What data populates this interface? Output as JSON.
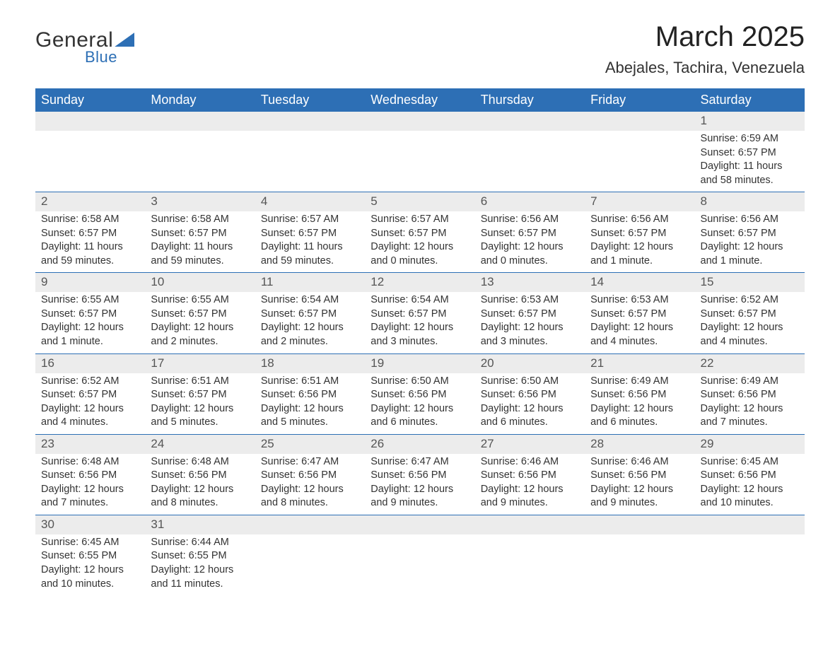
{
  "logo": {
    "word1": "General",
    "word2": "Blue"
  },
  "title": "March 2025",
  "location": "Abejales, Tachira, Venezuela",
  "colors": {
    "header_bg": "#2d6fb5",
    "header_text": "#ffffff",
    "daynum_bg": "#ececec",
    "row_border": "#2d6fb5",
    "body_text": "#333333",
    "page_bg": "#ffffff"
  },
  "weekday_labels": [
    "Sunday",
    "Monday",
    "Tuesday",
    "Wednesday",
    "Thursday",
    "Friday",
    "Saturday"
  ],
  "weeks": [
    [
      {
        "day": "",
        "sunrise": "",
        "sunset": "",
        "daylight": ""
      },
      {
        "day": "",
        "sunrise": "",
        "sunset": "",
        "daylight": ""
      },
      {
        "day": "",
        "sunrise": "",
        "sunset": "",
        "daylight": ""
      },
      {
        "day": "",
        "sunrise": "",
        "sunset": "",
        "daylight": ""
      },
      {
        "day": "",
        "sunrise": "",
        "sunset": "",
        "daylight": ""
      },
      {
        "day": "",
        "sunrise": "",
        "sunset": "",
        "daylight": ""
      },
      {
        "day": "1",
        "sunrise": "Sunrise: 6:59 AM",
        "sunset": "Sunset: 6:57 PM",
        "daylight": "Daylight: 11 hours and 58 minutes."
      }
    ],
    [
      {
        "day": "2",
        "sunrise": "Sunrise: 6:58 AM",
        "sunset": "Sunset: 6:57 PM",
        "daylight": "Daylight: 11 hours and 59 minutes."
      },
      {
        "day": "3",
        "sunrise": "Sunrise: 6:58 AM",
        "sunset": "Sunset: 6:57 PM",
        "daylight": "Daylight: 11 hours and 59 minutes."
      },
      {
        "day": "4",
        "sunrise": "Sunrise: 6:57 AM",
        "sunset": "Sunset: 6:57 PM",
        "daylight": "Daylight: 11 hours and 59 minutes."
      },
      {
        "day": "5",
        "sunrise": "Sunrise: 6:57 AM",
        "sunset": "Sunset: 6:57 PM",
        "daylight": "Daylight: 12 hours and 0 minutes."
      },
      {
        "day": "6",
        "sunrise": "Sunrise: 6:56 AM",
        "sunset": "Sunset: 6:57 PM",
        "daylight": "Daylight: 12 hours and 0 minutes."
      },
      {
        "day": "7",
        "sunrise": "Sunrise: 6:56 AM",
        "sunset": "Sunset: 6:57 PM",
        "daylight": "Daylight: 12 hours and 1 minute."
      },
      {
        "day": "8",
        "sunrise": "Sunrise: 6:56 AM",
        "sunset": "Sunset: 6:57 PM",
        "daylight": "Daylight: 12 hours and 1 minute."
      }
    ],
    [
      {
        "day": "9",
        "sunrise": "Sunrise: 6:55 AM",
        "sunset": "Sunset: 6:57 PM",
        "daylight": "Daylight: 12 hours and 1 minute."
      },
      {
        "day": "10",
        "sunrise": "Sunrise: 6:55 AM",
        "sunset": "Sunset: 6:57 PM",
        "daylight": "Daylight: 12 hours and 2 minutes."
      },
      {
        "day": "11",
        "sunrise": "Sunrise: 6:54 AM",
        "sunset": "Sunset: 6:57 PM",
        "daylight": "Daylight: 12 hours and 2 minutes."
      },
      {
        "day": "12",
        "sunrise": "Sunrise: 6:54 AM",
        "sunset": "Sunset: 6:57 PM",
        "daylight": "Daylight: 12 hours and 3 minutes."
      },
      {
        "day": "13",
        "sunrise": "Sunrise: 6:53 AM",
        "sunset": "Sunset: 6:57 PM",
        "daylight": "Daylight: 12 hours and 3 minutes."
      },
      {
        "day": "14",
        "sunrise": "Sunrise: 6:53 AM",
        "sunset": "Sunset: 6:57 PM",
        "daylight": "Daylight: 12 hours and 4 minutes."
      },
      {
        "day": "15",
        "sunrise": "Sunrise: 6:52 AM",
        "sunset": "Sunset: 6:57 PM",
        "daylight": "Daylight: 12 hours and 4 minutes."
      }
    ],
    [
      {
        "day": "16",
        "sunrise": "Sunrise: 6:52 AM",
        "sunset": "Sunset: 6:57 PM",
        "daylight": "Daylight: 12 hours and 4 minutes."
      },
      {
        "day": "17",
        "sunrise": "Sunrise: 6:51 AM",
        "sunset": "Sunset: 6:57 PM",
        "daylight": "Daylight: 12 hours and 5 minutes."
      },
      {
        "day": "18",
        "sunrise": "Sunrise: 6:51 AM",
        "sunset": "Sunset: 6:56 PM",
        "daylight": "Daylight: 12 hours and 5 minutes."
      },
      {
        "day": "19",
        "sunrise": "Sunrise: 6:50 AM",
        "sunset": "Sunset: 6:56 PM",
        "daylight": "Daylight: 12 hours and 6 minutes."
      },
      {
        "day": "20",
        "sunrise": "Sunrise: 6:50 AM",
        "sunset": "Sunset: 6:56 PM",
        "daylight": "Daylight: 12 hours and 6 minutes."
      },
      {
        "day": "21",
        "sunrise": "Sunrise: 6:49 AM",
        "sunset": "Sunset: 6:56 PM",
        "daylight": "Daylight: 12 hours and 6 minutes."
      },
      {
        "day": "22",
        "sunrise": "Sunrise: 6:49 AM",
        "sunset": "Sunset: 6:56 PM",
        "daylight": "Daylight: 12 hours and 7 minutes."
      }
    ],
    [
      {
        "day": "23",
        "sunrise": "Sunrise: 6:48 AM",
        "sunset": "Sunset: 6:56 PM",
        "daylight": "Daylight: 12 hours and 7 minutes."
      },
      {
        "day": "24",
        "sunrise": "Sunrise: 6:48 AM",
        "sunset": "Sunset: 6:56 PM",
        "daylight": "Daylight: 12 hours and 8 minutes."
      },
      {
        "day": "25",
        "sunrise": "Sunrise: 6:47 AM",
        "sunset": "Sunset: 6:56 PM",
        "daylight": "Daylight: 12 hours and 8 minutes."
      },
      {
        "day": "26",
        "sunrise": "Sunrise: 6:47 AM",
        "sunset": "Sunset: 6:56 PM",
        "daylight": "Daylight: 12 hours and 9 minutes."
      },
      {
        "day": "27",
        "sunrise": "Sunrise: 6:46 AM",
        "sunset": "Sunset: 6:56 PM",
        "daylight": "Daylight: 12 hours and 9 minutes."
      },
      {
        "day": "28",
        "sunrise": "Sunrise: 6:46 AM",
        "sunset": "Sunset: 6:56 PM",
        "daylight": "Daylight: 12 hours and 9 minutes."
      },
      {
        "day": "29",
        "sunrise": "Sunrise: 6:45 AM",
        "sunset": "Sunset: 6:56 PM",
        "daylight": "Daylight: 12 hours and 10 minutes."
      }
    ],
    [
      {
        "day": "30",
        "sunrise": "Sunrise: 6:45 AM",
        "sunset": "Sunset: 6:55 PM",
        "daylight": "Daylight: 12 hours and 10 minutes."
      },
      {
        "day": "31",
        "sunrise": "Sunrise: 6:44 AM",
        "sunset": "Sunset: 6:55 PM",
        "daylight": "Daylight: 12 hours and 11 minutes."
      },
      {
        "day": "",
        "sunrise": "",
        "sunset": "",
        "daylight": ""
      },
      {
        "day": "",
        "sunrise": "",
        "sunset": "",
        "daylight": ""
      },
      {
        "day": "",
        "sunrise": "",
        "sunset": "",
        "daylight": ""
      },
      {
        "day": "",
        "sunrise": "",
        "sunset": "",
        "daylight": ""
      },
      {
        "day": "",
        "sunrise": "",
        "sunset": "",
        "daylight": ""
      }
    ]
  ]
}
